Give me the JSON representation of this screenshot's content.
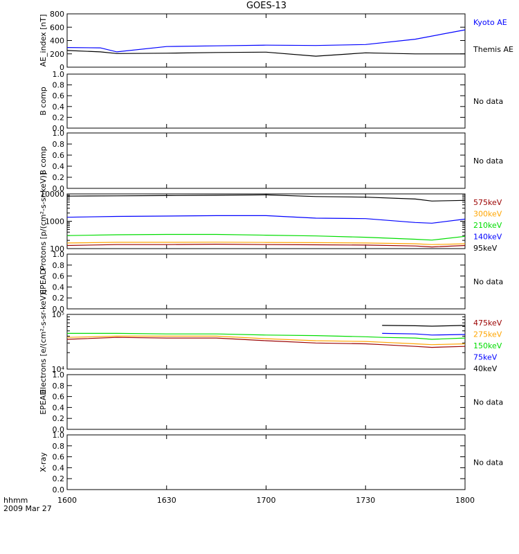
{
  "title": "GOES-13",
  "footer": {
    "time_label": "hhmm",
    "date_label": "2009 Mar 27"
  },
  "x_ticks": [
    "1600",
    "1630",
    "1700",
    "1730",
    "1800"
  ],
  "colors": {
    "black": "#000000",
    "blue": "#0000ff",
    "green": "#00dd00",
    "orange": "#ffa500",
    "red": "#9b0000"
  },
  "chart_data": [
    {
      "type": "line",
      "ylabel": "AE_index [nT]",
      "ylim": [
        0,
        800
      ],
      "y_ticks": [
        "800",
        "600",
        "400",
        "200",
        "0"
      ],
      "x": [
        1600,
        1610,
        1615,
        1630,
        1645,
        1700,
        1715,
        1730,
        1745,
        1800
      ],
      "series": [
        {
          "name": "Kyoto AE",
          "color": "#0000ff",
          "values": [
            295,
            290,
            230,
            310,
            320,
            330,
            325,
            340,
            420,
            560
          ]
        },
        {
          "name": "Themis AE",
          "color": "#000000",
          "values": [
            250,
            230,
            205,
            210,
            220,
            225,
            165,
            215,
            200,
            200
          ]
        }
      ]
    },
    {
      "type": "line",
      "ylabel": "B comp",
      "ylim": [
        0,
        1
      ],
      "y_ticks": [
        "1.0",
        "0.8",
        "0.6",
        "0.4",
        "0.2",
        "0.0"
      ],
      "note": "No data",
      "series": []
    },
    {
      "type": "line",
      "ylabel": "B comp",
      "ylim": [
        0,
        1
      ],
      "y_ticks": [
        "1.0",
        "0.8",
        "0.6",
        "0.4",
        "0.2",
        "0.0"
      ],
      "note": "No data",
      "series": []
    },
    {
      "type": "line",
      "ylabel": "Protons [p/(cm²-s-sr-keV)]",
      "ylim": [
        100,
        10000
      ],
      "log": true,
      "y_ticks": [
        "10000",
        "1000",
        "100"
      ],
      "x": [
        1600,
        1615,
        1630,
        1645,
        1700,
        1715,
        1730,
        1745,
        1750,
        1800
      ],
      "series": [
        {
          "name": "575keV",
          "color": "#9b0000",
          "values": [
            130,
            140,
            140,
            145,
            140,
            138,
            135,
            125,
            115,
            130
          ]
        },
        {
          "name": "300keV",
          "color": "#ffa500",
          "values": [
            160,
            170,
            170,
            172,
            168,
            165,
            160,
            150,
            140,
            150
          ]
        },
        {
          "name": "210keV",
          "color": "#00dd00",
          "values": [
            300,
            320,
            330,
            330,
            310,
            290,
            260,
            220,
            205,
            280
          ]
        },
        {
          "name": "140keV",
          "color": "#0000ff",
          "values": [
            1400,
            1500,
            1550,
            1600,
            1600,
            1300,
            1250,
            900,
            850,
            1200
          ]
        },
        {
          "name": "95keV",
          "color": "#000000",
          "values": [
            8300,
            8500,
            8700,
            8900,
            9200,
            8000,
            7600,
            6500,
            5500,
            5800
          ]
        }
      ]
    },
    {
      "type": "line",
      "ylabel": "EPEAD",
      "ylim": [
        0,
        1
      ],
      "y_ticks": [
        "1.0",
        "0.8",
        "0.6",
        "0.4",
        "0.2",
        "0.0"
      ],
      "note": "No data",
      "series": []
    },
    {
      "type": "line",
      "ylabel": "Electrons [e/(cm²-s-sr-keV)]",
      "ylim": [
        10000,
        100000
      ],
      "log": true,
      "y_ticks": [
        "10⁵",
        "10⁴"
      ],
      "x": [
        1600,
        1615,
        1630,
        1645,
        1700,
        1715,
        1730,
        1735,
        1745,
        1750,
        1800
      ],
      "series": [
        {
          "name": "475keV",
          "color": "#9b0000",
          "values": [
            35000,
            38000,
            37000,
            37000,
            33000,
            30000,
            29000,
            28000,
            26000,
            25000,
            26000
          ]
        },
        {
          "name": "275keV",
          "color": "#ffa500",
          "values": [
            38000,
            40000,
            40000,
            40000,
            36000,
            33000,
            32000,
            31000,
            29000,
            28000,
            29000
          ]
        },
        {
          "name": "150keV",
          "color": "#00dd00",
          "values": [
            45000,
            45000,
            44000,
            44000,
            42000,
            41000,
            39000,
            38000,
            37000,
            35000,
            37000
          ]
        },
        {
          "name": "75keV",
          "color": "#0000ff",
          "values": [
            null,
            null,
            null,
            null,
            null,
            null,
            null,
            45000,
            44000,
            42000,
            43000
          ]
        },
        {
          "name": "40keV",
          "color": "#000000",
          "values": [
            null,
            null,
            null,
            null,
            null,
            null,
            null,
            63000,
            62000,
            61000,
            63000
          ]
        }
      ]
    },
    {
      "type": "line",
      "ylabel": "EPEAD",
      "ylim": [
        0,
        1
      ],
      "y_ticks": [
        "1.0",
        "0.8",
        "0.6",
        "0.4",
        "0.2",
        "0.0"
      ],
      "note": "No data",
      "series": []
    },
    {
      "type": "line",
      "ylabel": "X-ray",
      "ylim": [
        0,
        1
      ],
      "y_ticks": [
        "1.0",
        "0.8",
        "0.6",
        "0.4",
        "0.2",
        "0.0"
      ],
      "note": "No data",
      "series": []
    }
  ]
}
